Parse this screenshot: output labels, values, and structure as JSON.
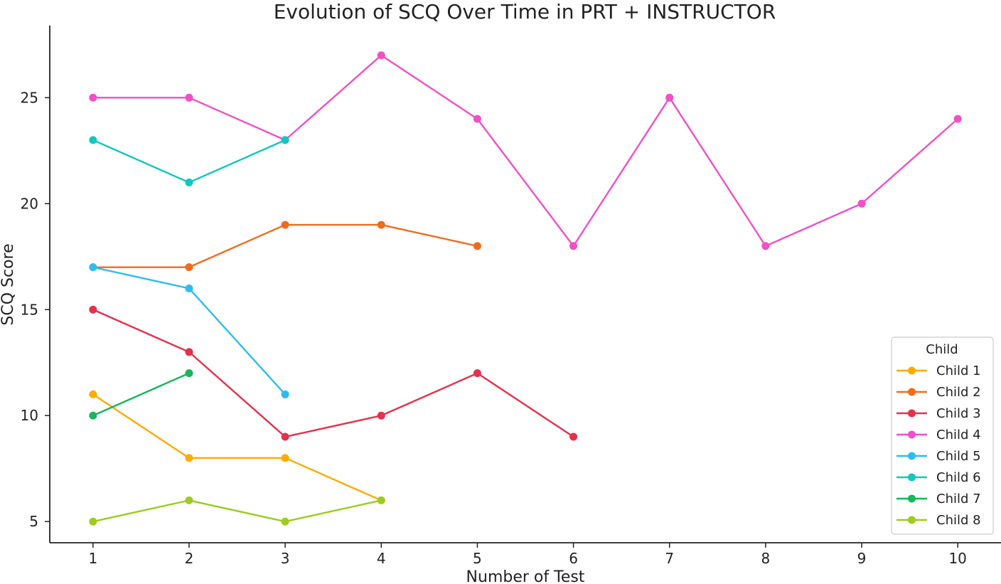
{
  "chart_data": {
    "type": "line",
    "title": "Evolution of SCQ Over Time in PRT + INSTRUCTOR",
    "xlabel": "Number of Test",
    "ylabel": "SCQ Score",
    "xlim": [
      0.55,
      10.45
    ],
    "ylim": [
      4.0,
      28.4
    ],
    "x_ticks": [
      "1",
      "2",
      "3",
      "4",
      "5",
      "6",
      "7",
      "8",
      "9",
      "10"
    ],
    "y_ticks": [
      "5",
      "10",
      "15",
      "20",
      "25"
    ],
    "grid": false,
    "legend_title": "Child",
    "legend_position": "lower-right",
    "series": [
      {
        "name": "Child 1",
        "color": "#ffaa00",
        "x": [
          1,
          2,
          3,
          4
        ],
        "y": [
          11,
          8,
          8,
          6
        ]
      },
      {
        "name": "Child 2",
        "color": "#f26b1d",
        "x": [
          1,
          2,
          3,
          4,
          5
        ],
        "y": [
          17,
          17,
          19,
          19,
          18
        ]
      },
      {
        "name": "Child 3",
        "color": "#e8304a",
        "x": [
          1,
          2,
          3,
          4,
          5,
          6
        ],
        "y": [
          15,
          13,
          9,
          10,
          12,
          9
        ]
      },
      {
        "name": "Child 4",
        "color": "#f050c8",
        "x": [
          1,
          2,
          3,
          4,
          5,
          6,
          7,
          8,
          9,
          10
        ],
        "y": [
          25,
          25,
          23,
          27,
          24,
          18,
          25,
          18,
          20,
          24
        ]
      },
      {
        "name": "Child 5",
        "color": "#2ebcf2",
        "x": [
          1,
          2,
          3
        ],
        "y": [
          17,
          16,
          11
        ]
      },
      {
        "name": "Child 6",
        "color": "#10c8c0",
        "x": [
          1,
          2,
          3
        ],
        "y": [
          23,
          21,
          23
        ]
      },
      {
        "name": "Child 7",
        "color": "#12b85a",
        "x": [
          1,
          2
        ],
        "y": [
          10,
          12
        ]
      },
      {
        "name": "Child 8",
        "color": "#9acd1e",
        "x": [
          1,
          2,
          3,
          4
        ],
        "y": [
          5,
          6,
          5,
          6
        ]
      }
    ]
  }
}
